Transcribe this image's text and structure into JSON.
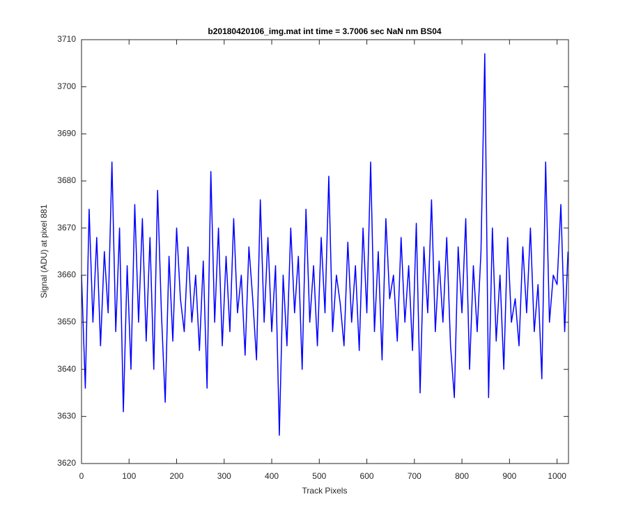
{
  "chart_data": {
    "type": "line",
    "title": "b20180420106_img.mat int time = 3.7006 sec  NaN nm BS04",
    "xlabel": "Track Pixels",
    "ylabel": "Signal (ADU) at pixel 881",
    "color": "#0000ff",
    "xlim": [
      0,
      1024
    ],
    "ylim": [
      3620,
      3710
    ],
    "xticks": [
      0,
      100,
      200,
      300,
      400,
      500,
      600,
      700,
      800,
      900,
      1000
    ],
    "yticks": [
      3620,
      3630,
      3640,
      3650,
      3660,
      3670,
      3680,
      3690,
      3700,
      3710
    ],
    "x": [
      0,
      8,
      16,
      24,
      32,
      40,
      48,
      56,
      64,
      72,
      80,
      88,
      96,
      104,
      112,
      120,
      128,
      136,
      144,
      152,
      160,
      168,
      176,
      184,
      192,
      200,
      208,
      216,
      224,
      232,
      240,
      248,
      256,
      264,
      272,
      280,
      288,
      296,
      304,
      312,
      320,
      328,
      336,
      344,
      352,
      360,
      368,
      376,
      384,
      392,
      400,
      408,
      416,
      424,
      432,
      440,
      448,
      456,
      464,
      472,
      480,
      488,
      496,
      504,
      512,
      520,
      528,
      536,
      544,
      552,
      560,
      568,
      576,
      584,
      592,
      600,
      608,
      616,
      624,
      632,
      640,
      648,
      656,
      664,
      672,
      680,
      688,
      696,
      704,
      712,
      720,
      728,
      736,
      744,
      752,
      760,
      768,
      776,
      784,
      792,
      800,
      808,
      816,
      824,
      832,
      840,
      848,
      856,
      864,
      872,
      880,
      888,
      896,
      904,
      912,
      920,
      928,
      936,
      944,
      952,
      960,
      968,
      976,
      984,
      992,
      1000,
      1008,
      1016,
      1023
    ],
    "values": [
      3660,
      3636,
      3674,
      3650,
      3668,
      3645,
      3665,
      3652,
      3684,
      3648,
      3670,
      3631,
      3662,
      3640,
      3675,
      3650,
      3672,
      3646,
      3668,
      3640,
      3678,
      3652,
      3633,
      3664,
      3646,
      3670,
      3655,
      3648,
      3666,
      3650,
      3660,
      3644,
      3663,
      3636,
      3682,
      3650,
      3670,
      3645,
      3664,
      3648,
      3672,
      3652,
      3660,
      3643,
      3666,
      3655,
      3642,
      3676,
      3650,
      3668,
      3648,
      3662,
      3626,
      3660,
      3645,
      3670,
      3652,
      3664,
      3640,
      3674,
      3650,
      3662,
      3645,
      3668,
      3652,
      3681,
      3648,
      3660,
      3654,
      3645,
      3667,
      3650,
      3662,
      3644,
      3670,
      3652,
      3684,
      3648,
      3665,
      3642,
      3672,
      3655,
      3660,
      3646,
      3668,
      3650,
      3662,
      3644,
      3671,
      3635,
      3666,
      3652,
      3676,
      3648,
      3663,
      3650,
      3668,
      3645,
      3634,
      3666,
      3652,
      3672,
      3640,
      3662,
      3648,
      3665,
      3707,
      3634,
      3670,
      3646,
      3660,
      3640,
      3668,
      3650,
      3655,
      3645,
      3666,
      3652,
      3670,
      3648,
      3658,
      3638,
      3684,
      3650,
      3660,
      3658,
      3675,
      3648,
      3665
    ]
  }
}
